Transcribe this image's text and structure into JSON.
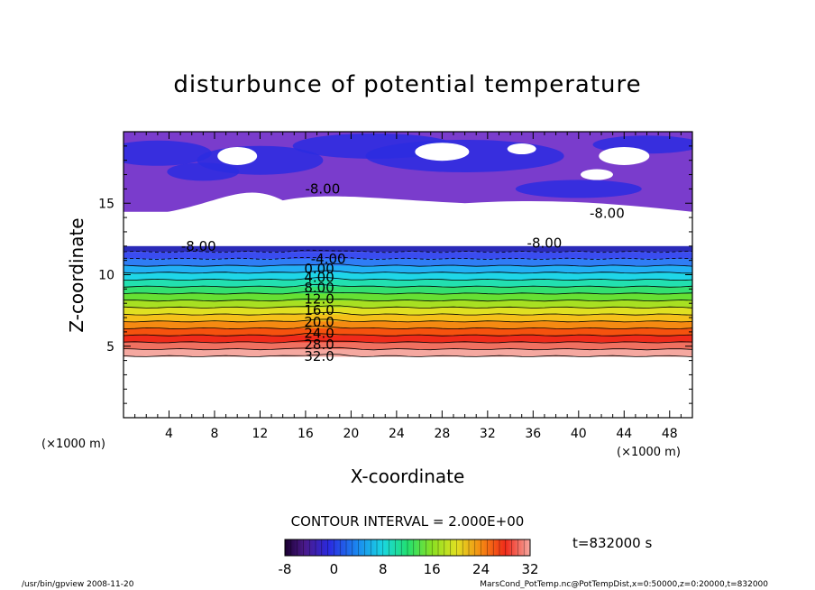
{
  "chart_data": {
    "type": "heatmap",
    "title": "disturbunce of potential temperature",
    "xlabel": "X-coordinate",
    "ylabel": "Z-coordinate",
    "x_unit": "(×1000 m)",
    "y_unit": "(×1000 m)",
    "xlim": [
      0,
      50
    ],
    "ylim": [
      0,
      20
    ],
    "x_ticks": [
      4,
      8,
      12,
      16,
      20,
      24,
      28,
      32,
      36,
      40,
      44,
      48
    ],
    "y_ticks": [
      5,
      10,
      15
    ],
    "contour_labels": [
      {
        "text": "-8.00",
        "x": 17.5,
        "z": 16.0
      },
      {
        "text": "-8.00",
        "x": 6.6,
        "z": 12.0
      },
      {
        "text": "-8.00",
        "x": 37.0,
        "z": 12.2
      },
      {
        "text": "-8.00",
        "x": 42.5,
        "z": 14.3
      },
      {
        "text": "-4.00",
        "x": 18.0,
        "z": 11.1
      },
      {
        "text": "0.00",
        "x": 17.2,
        "z": 10.4
      },
      {
        "text": "4.00",
        "x": 17.2,
        "z": 9.8
      },
      {
        "text": "8.00",
        "x": 17.2,
        "z": 9.1
      },
      {
        "text": "12.0",
        "x": 17.2,
        "z": 8.3
      },
      {
        "text": "16.0",
        "x": 17.2,
        "z": 7.5
      },
      {
        "text": "20.0",
        "x": 17.2,
        "z": 6.7
      },
      {
        "text": "24.0",
        "x": 17.2,
        "z": 5.9
      },
      {
        "text": "28.0",
        "x": 17.2,
        "z": 5.1
      },
      {
        "text": "32.0",
        "x": 17.2,
        "z": 4.3
      }
    ],
    "colorbar": {
      "min": -8,
      "max": 32,
      "ticks": [
        -8,
        0,
        8,
        16,
        24,
        32
      ]
    },
    "contour_interval_text": "CONTOUR INTERVAL = 2.000E+00",
    "time_text": "t=832000 s"
  },
  "footer": {
    "left": "/usr/bin/gpview   2008-11-20",
    "right": "MarsCond_PotTemp.nc@PotTempDist,x=0:50000,z=0:20000,t=832000"
  },
  "colors": {
    "upper_purple": "#7a3ccc",
    "upper_blue": "#2b2be0",
    "bands": [
      "#3a4cf0",
      "#2f7df5",
      "#22b0f5",
      "#1fd6e8",
      "#22e0b0",
      "#33e070",
      "#66e033",
      "#a8e022",
      "#e0e022",
      "#f5c01a",
      "#f58a12",
      "#f5520e",
      "#f02a1a",
      "#f07060",
      "#f5a8a0"
    ]
  }
}
